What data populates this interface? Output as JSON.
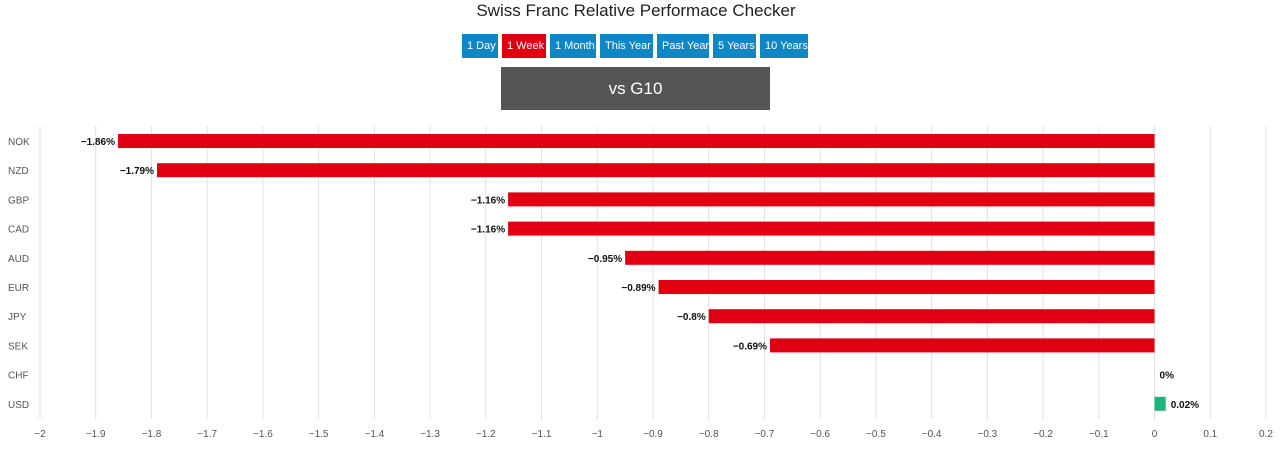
{
  "header": {
    "title": "Swiss Franc Relative Performace Checker",
    "tabs": [
      "1 Day",
      "1 Week",
      "1 Month",
      "This Year",
      "Past Year",
      "5 Years",
      "10 Years"
    ],
    "active_tab": "1 Week",
    "comparison_label": "vs G10"
  },
  "colors": {
    "negative": "#e00012",
    "positive": "#1db37a",
    "tab": "#1186c5",
    "tab_active": "#e00012",
    "grid": "#e0e0e0"
  },
  "chart_data": {
    "type": "bar",
    "orientation": "horizontal",
    "categories": [
      "NOK",
      "NZD",
      "GBP",
      "CAD",
      "AUD",
      "EUR",
      "JPY",
      "SEK",
      "CHF",
      "USD"
    ],
    "values": [
      -1.86,
      -1.79,
      -1.16,
      -1.16,
      -0.95,
      -0.89,
      -0.8,
      -0.69,
      0,
      0.02
    ],
    "data_labels": [
      "−1.86%",
      "−1.79%",
      "−1.16%",
      "−1.16%",
      "−0.95%",
      "−0.89%",
      "−0.8%",
      "−0.69%",
      "0%",
      "0.02%"
    ],
    "xlim": [
      -2,
      0.2
    ],
    "x_ticks": [
      -2,
      -1.9,
      -1.8,
      -1.7,
      -1.6,
      -1.5,
      -1.4,
      -1.3,
      -1.2,
      -1.1,
      -1,
      -0.9,
      -0.8,
      -0.7,
      -0.6,
      -0.5,
      -0.4,
      -0.3,
      -0.2,
      -0.1,
      0,
      0.1,
      0.2
    ],
    "x_tick_labels": [
      "−2",
      "−1.9",
      "−1.8",
      "−1.7",
      "−1.6",
      "−1.5",
      "−1.4",
      "−1.3",
      "−1.2",
      "−1.1",
      "−1",
      "−0.9",
      "−0.8",
      "−0.7",
      "−0.6",
      "−0.5",
      "−0.4",
      "−0.3",
      "−0.2",
      "−0.1",
      "0",
      "0.1",
      "0.2"
    ],
    "grid": true
  }
}
